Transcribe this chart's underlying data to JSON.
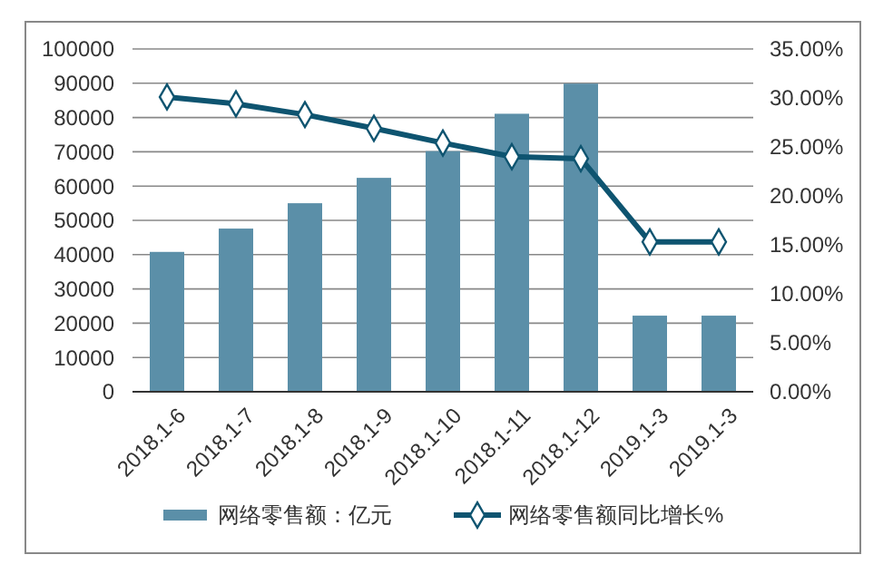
{
  "chart_data": {
    "type": "bar",
    "categories": [
      "2018.1-6",
      "2018.1-7",
      "2018.1-8",
      "2018.1-9",
      "2018.1-10",
      "2018.1-11",
      "2018.1-12",
      "2019.1-3",
      "2019.1-3"
    ],
    "series": [
      {
        "name": "网络零售额：亿元",
        "color": "#5b8fa8",
        "values": [
          40800,
          47600,
          55000,
          62400,
          70200,
          81100,
          89900,
          22200,
          22200
        ]
      },
      {
        "name": "网络零售额同比增长%",
        "type": "line",
        "axis": "y2",
        "color": "#0e5470",
        "marker": "diamond",
        "values": [
          30.1,
          29.4,
          28.3,
          26.9,
          25.4,
          24.0,
          23.8,
          15.3,
          15.3
        ]
      }
    ],
    "ylim": [
      0,
      100000
    ],
    "yticks": [
      0,
      10000,
      20000,
      30000,
      40000,
      50000,
      60000,
      70000,
      80000,
      90000,
      100000
    ],
    "y2lim": [
      0,
      35
    ],
    "y2ticks": [
      {
        "value": 0,
        "label": "0.00%"
      },
      {
        "value": 5,
        "label": "5.00%"
      },
      {
        "value": 10,
        "label": "10.00%"
      },
      {
        "value": 15,
        "label": "15.00%"
      },
      {
        "value": 20,
        "label": "20.00%"
      },
      {
        "value": 25,
        "label": "25.00%"
      },
      {
        "value": 30,
        "label": "30.00%"
      },
      {
        "value": 35,
        "label": "35.00%"
      }
    ],
    "grid": "y",
    "legend": "bottom"
  }
}
